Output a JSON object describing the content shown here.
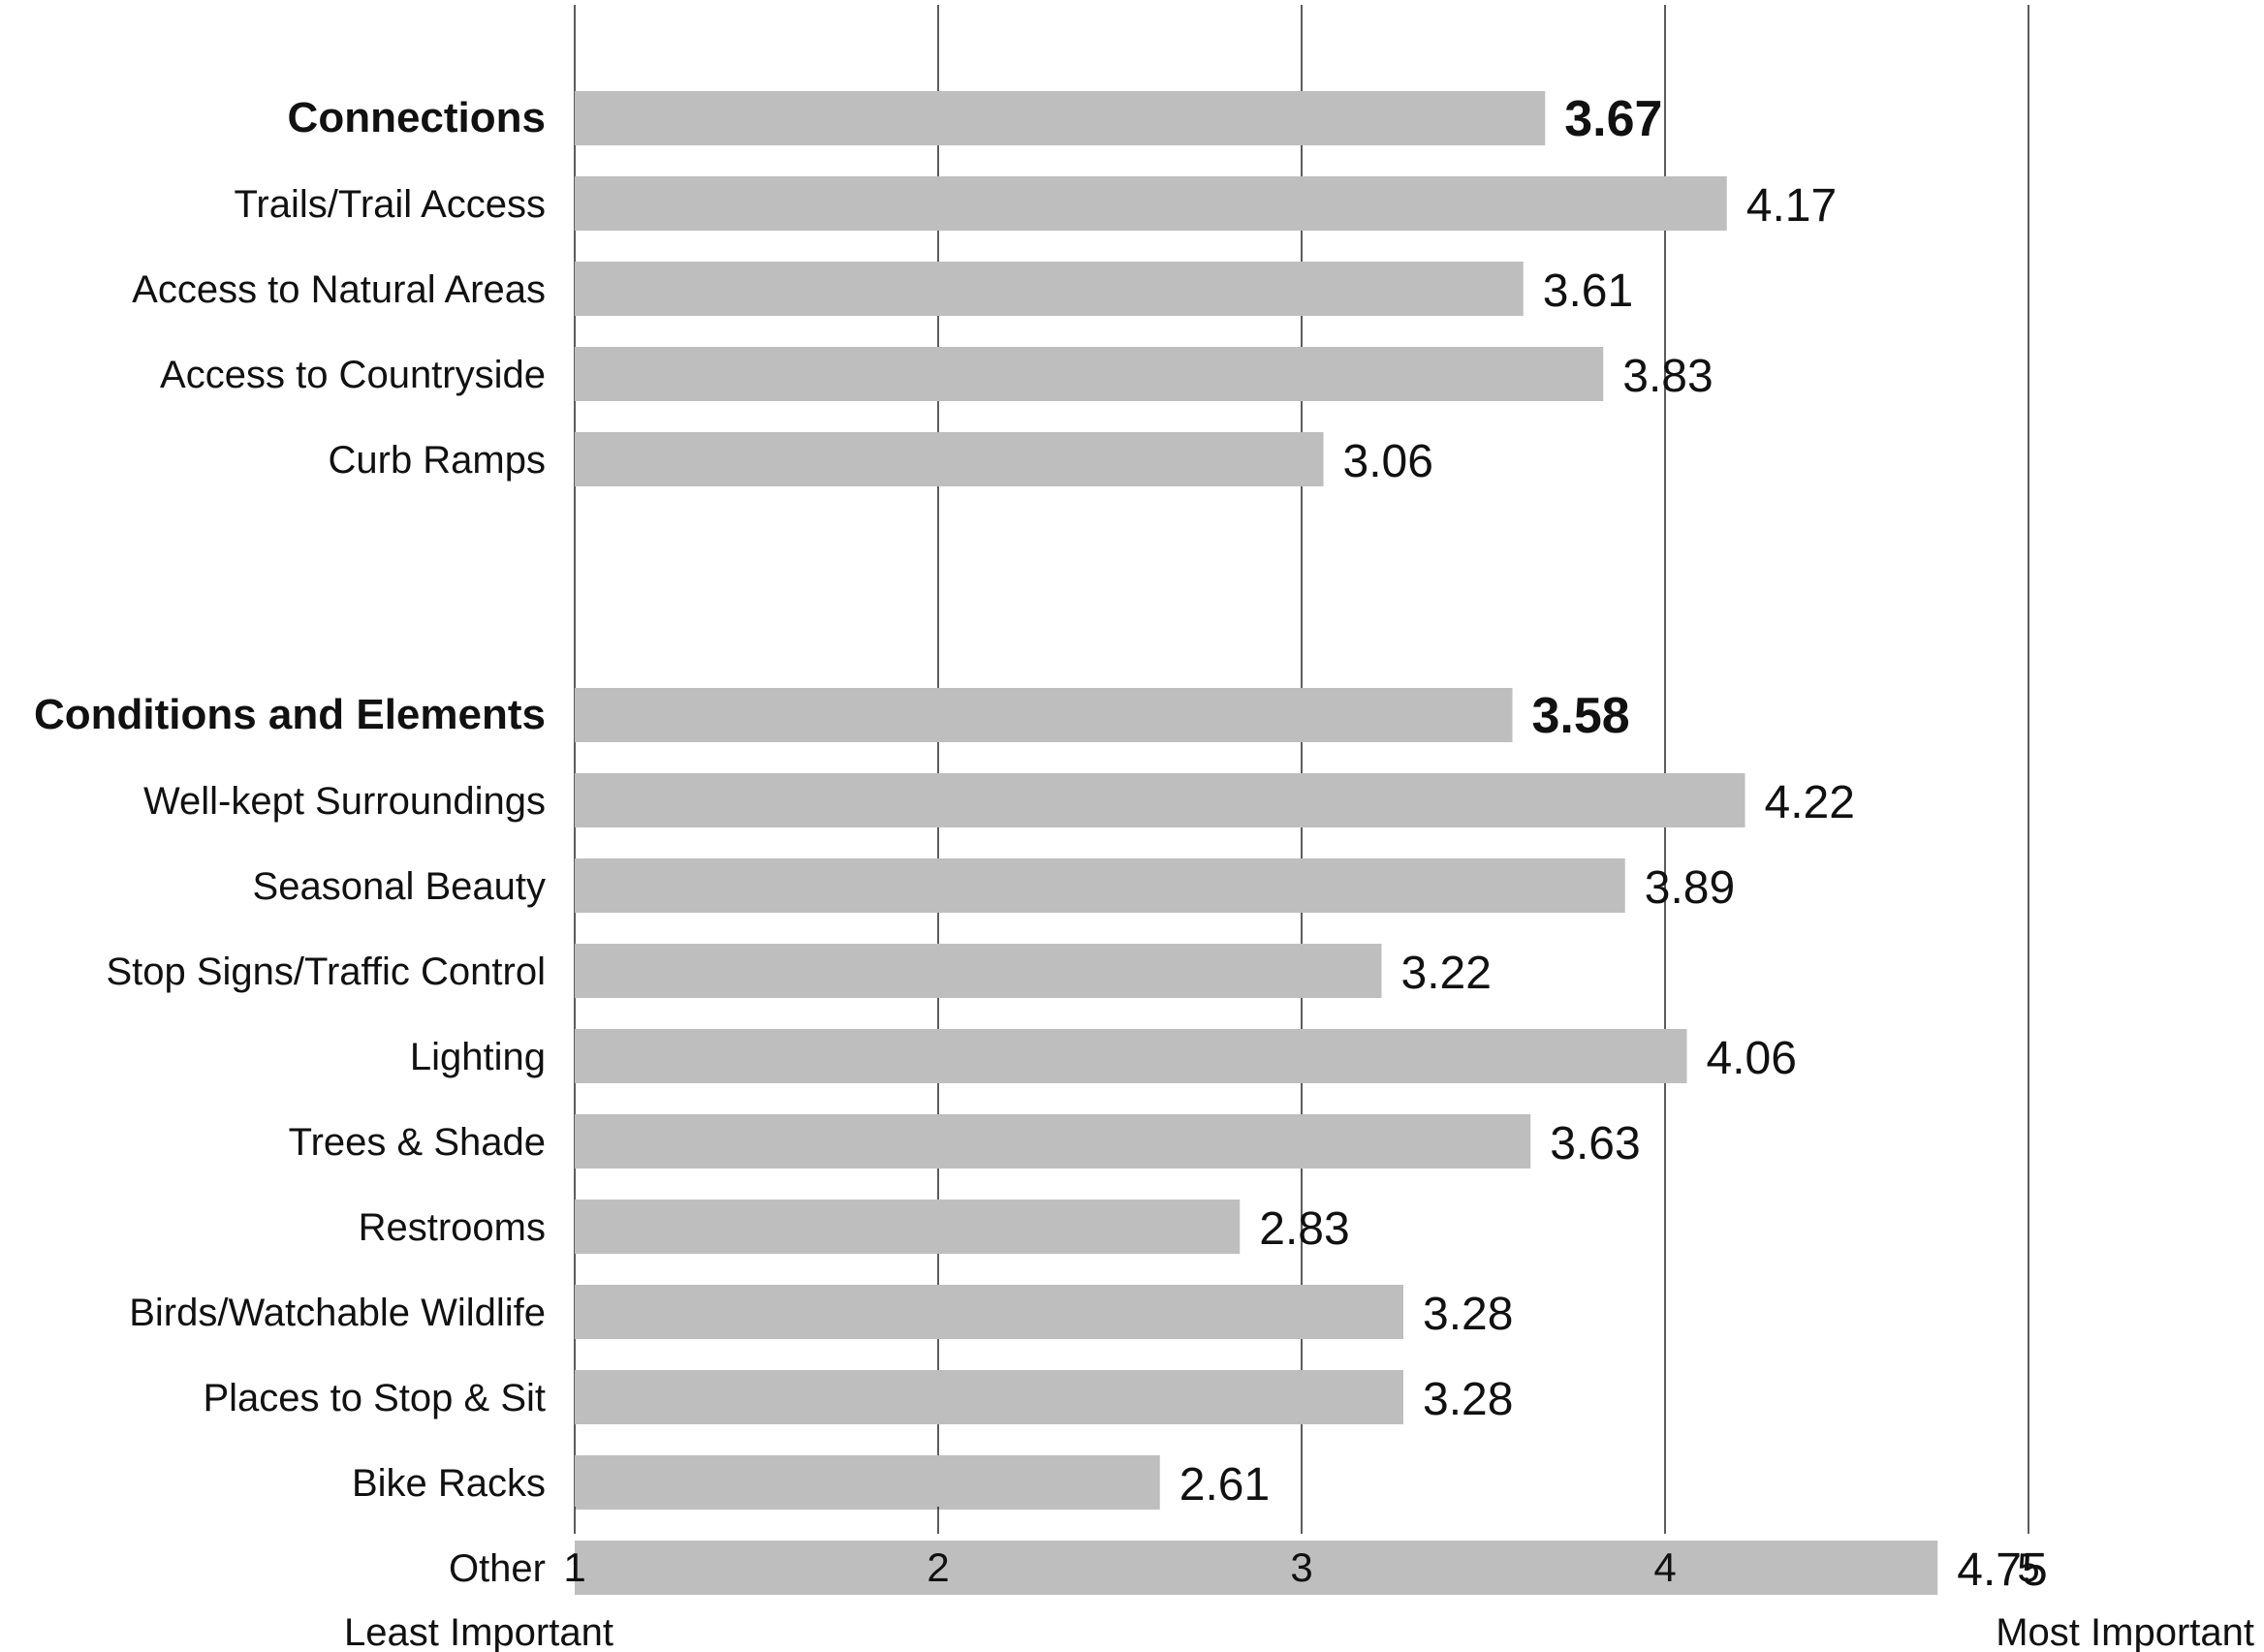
{
  "chart_data": {
    "type": "bar",
    "orientation": "horizontal",
    "title": "",
    "xlabel": "",
    "ylabel": "",
    "xlim": [
      1,
      5
    ],
    "x_ticks": [
      "1",
      "2",
      "3",
      "4",
      "5"
    ],
    "x_axis_end_labels": {
      "left": "Least Important",
      "right": "Most Important"
    },
    "grid": "vertical",
    "bar_color": "#bfbebe",
    "categories": [
      "Connections",
      "Trails/Trail Access",
      "Access to Natural Areas",
      "Access to Countryside",
      "Curb Ramps",
      "Conditions and Elements",
      "Well-kept Surroundings",
      "Seasonal Beauty",
      "Stop Signs/Traffic Control",
      "Lighting",
      "Trees & Shade",
      "Restrooms",
      "Birds/Watchable Wildlife",
      "Places to Stop & Sit",
      "Bike Racks",
      "Other"
    ],
    "values": [
      3.67,
      4.17,
      3.61,
      3.83,
      3.06,
      3.58,
      4.22,
      3.89,
      3.22,
      4.06,
      3.63,
      2.83,
      3.28,
      3.28,
      2.61,
      4.75
    ],
    "value_labels": [
      "3.67",
      "4.17",
      "3.61",
      "3.83",
      "3.06",
      "3.58",
      "4.22",
      "3.89",
      "3.22",
      "4.06",
      "3.63",
      "2.83",
      "3.28",
      "3.28",
      "2.61",
      "4.75"
    ],
    "group_headers": [
      "Connections",
      "Conditions and Elements"
    ]
  }
}
